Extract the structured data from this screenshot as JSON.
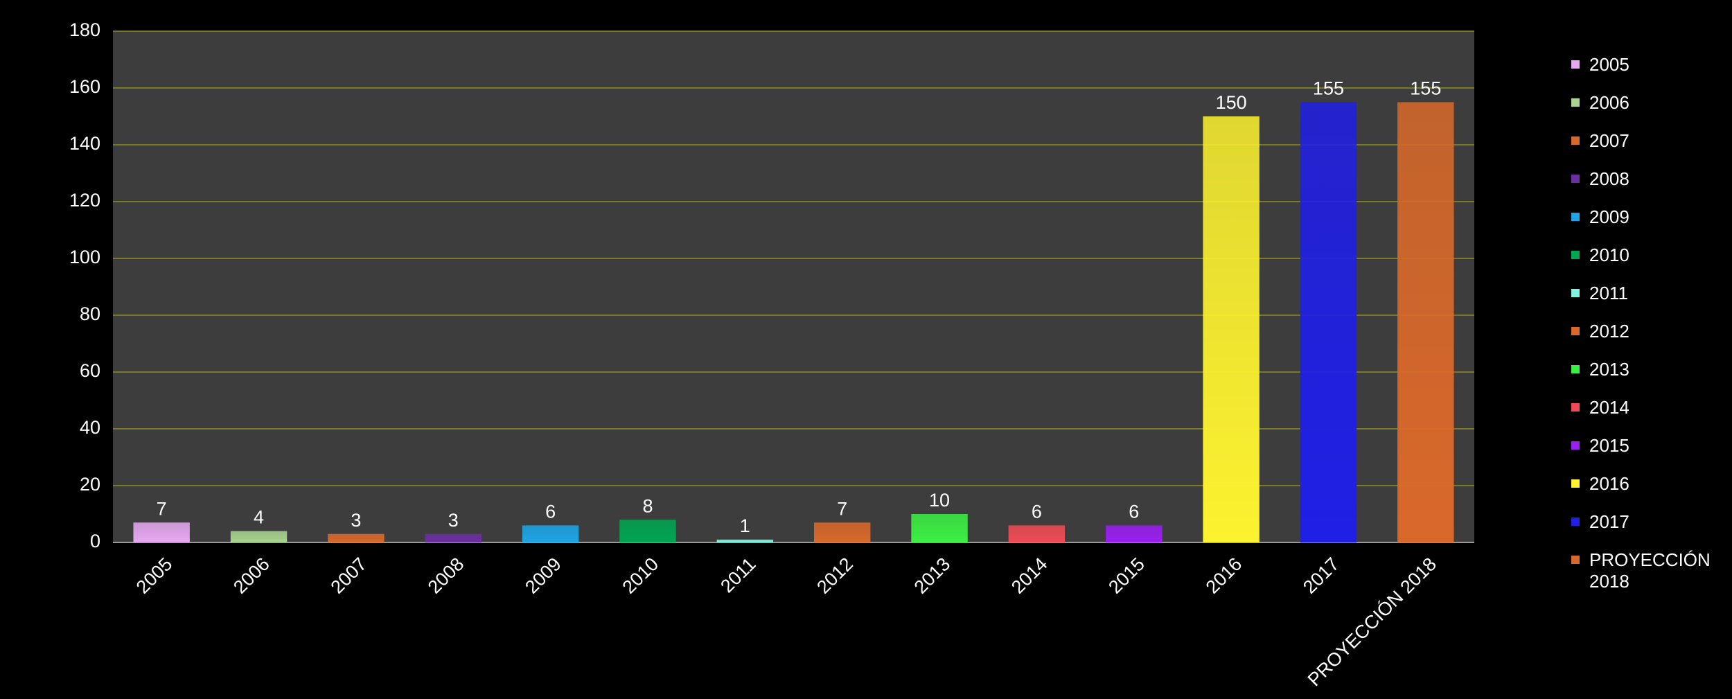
{
  "chart_data": {
    "type": "bar",
    "categories": [
      "2005",
      "2006",
      "2007",
      "2008",
      "2009",
      "2010",
      "2011",
      "2012",
      "2013",
      "2014",
      "2015",
      "2016",
      "2017",
      "PROYECCIÓN 2018"
    ],
    "values": [
      7,
      4,
      3,
      3,
      6,
      8,
      1,
      7,
      10,
      6,
      6,
      150,
      155,
      155
    ],
    "colors": [
      "#e6a8f0",
      "#a8d48f",
      "#d9692a",
      "#6b2fa0",
      "#1ea5e6",
      "#00a651",
      "#7ff5e0",
      "#d9692a",
      "#3cf043",
      "#f04b55",
      "#9a1ff0",
      "#fdf22f",
      "#1f1fe6",
      "#d9692a"
    ],
    "ylim": [
      0,
      180
    ],
    "yticks": [
      0,
      20,
      40,
      60,
      80,
      100,
      120,
      140,
      160,
      180
    ],
    "grid": true,
    "legend": "right"
  }
}
